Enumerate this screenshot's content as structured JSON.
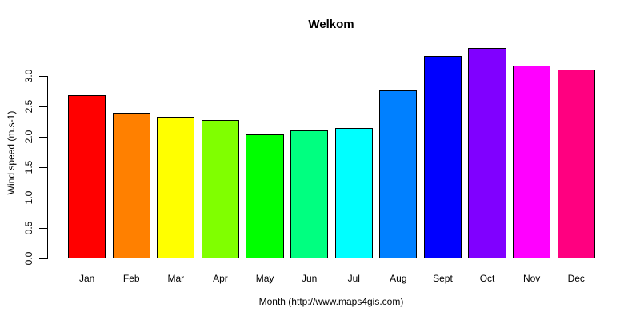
{
  "chart_data": {
    "type": "bar",
    "title": "Welkom",
    "xlabel": "Month (http://www.maps4gis.com)",
    "ylabel": "Wind speed (m.s-1)",
    "categories": [
      "Jan",
      "Feb",
      "Mar",
      "Apr",
      "May",
      "Jun",
      "Jul",
      "Aug",
      "Sept",
      "Oct",
      "Nov",
      "Dec"
    ],
    "values": [
      2.68,
      2.4,
      2.33,
      2.28,
      2.04,
      2.11,
      2.15,
      2.76,
      3.33,
      3.46,
      3.17,
      3.1
    ],
    "bar_colors": [
      "#FF0000",
      "#FF8000",
      "#FFFF00",
      "#80FF00",
      "#00FF00",
      "#00FF80",
      "#00FFFF",
      "#0080FF",
      "#0000FF",
      "#8000FF",
      "#FF00FF",
      "#FF0080"
    ],
    "bar_border_color": "#000000",
    "axis_color": "#000000",
    "text_color": "#000000",
    "background_color": "#FFFFFF",
    "ylim": [
      0,
      3.5
    ],
    "ytick_values": [
      0,
      0.5,
      1,
      1.5,
      2,
      2.5,
      3
    ],
    "ytick_labels": [
      "0.0",
      "0.5",
      "1.0",
      "1.5",
      "2.0",
      "2.5",
      "3.0"
    ],
    "grid": false,
    "legend": "none"
  }
}
